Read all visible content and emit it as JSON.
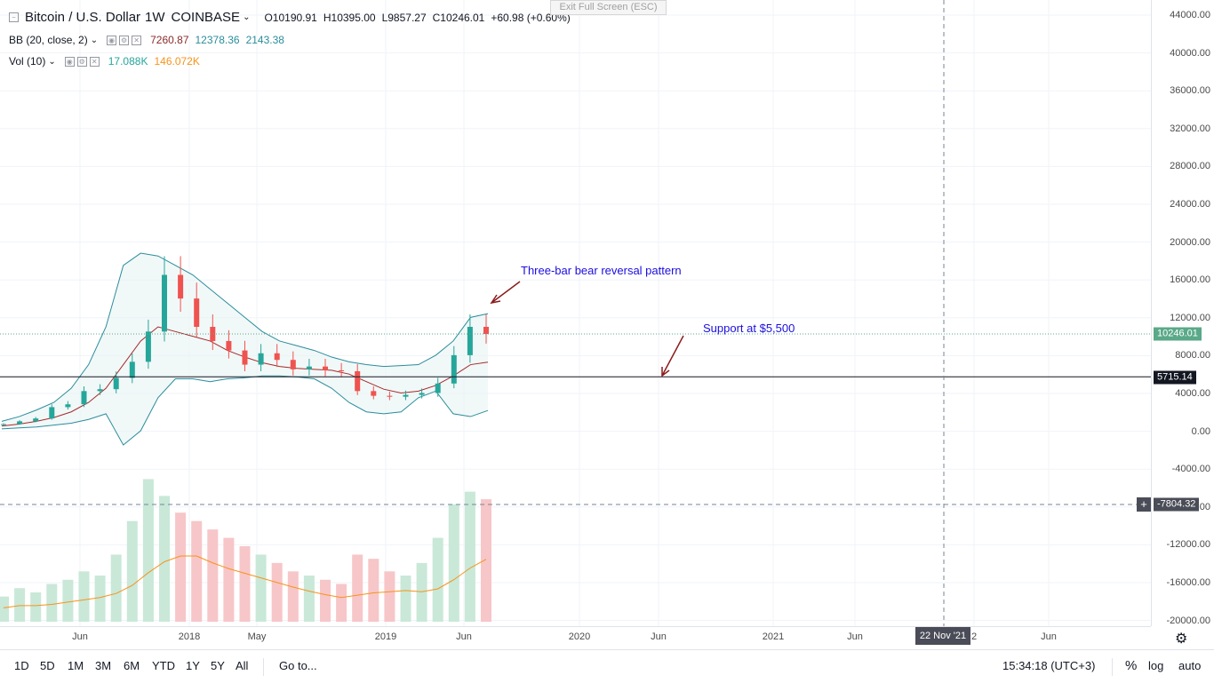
{
  "header": {
    "symbol": "Bitcoin / U.S. Dollar",
    "interval": "1W",
    "exchange": "COINBASE",
    "ohlc": {
      "o": "O10190.91",
      "h": "H10395.00",
      "l": "L9857.27",
      "c": "C10246.01",
      "change": "+60.98 (+0.60%)"
    },
    "fullscreen_hint": "Exit Full Screen (ESC)"
  },
  "indicators": {
    "bb": {
      "label": "BB (20, close, 2)",
      "basis": "7260.87",
      "upper": "12378.36",
      "lower": "2143.38"
    },
    "vol": {
      "label": "Vol (10)",
      "value": "17.088K",
      "ma": "146.072K"
    }
  },
  "price_axis": {
    "labels": [
      "44000.00",
      "40000.00",
      "36000.00",
      "32000.00",
      "28000.00",
      "24000.00",
      "20000.00",
      "16000.00",
      "12000.00",
      "8000.00",
      "4000.00",
      "0.00",
      "-4000.00",
      "-8000.00",
      "-12000.00",
      "-16000.00",
      "-20000.00"
    ],
    "last_price_tag": "10246.01",
    "support_tag": "5715.14",
    "crosshair_tag": "-7804.32"
  },
  "time_axis": {
    "labels": [
      "Jun",
      "2018",
      "May",
      "2019",
      "Jun",
      "2020",
      "Jun",
      "2021",
      "Jun",
      "2",
      "Jun"
    ],
    "crosshair_date": "22 Nov '21"
  },
  "annotations": {
    "reversal": "Three-bar bear reversal pattern",
    "support": "Support at $5,500"
  },
  "bottom_bar": {
    "ranges": [
      "1D",
      "5D",
      "1M",
      "3M",
      "6M",
      "YTD",
      "1Y",
      "5Y",
      "All"
    ],
    "goto": "Go to...",
    "clock": "15:34:18 (UTC+3)",
    "percent": "%",
    "log": "log",
    "auto": "auto"
  },
  "colors": {
    "up": "#26a69a",
    "down": "#ef5350",
    "bb_band": "#2a8d9c",
    "bb_basis": "#a52a2a",
    "vol_up": "#c9e8d8",
    "vol_down": "#f7c6c8",
    "vol_ma": "#f7931a",
    "annotation": "#1c0ee0",
    "last_tag": "#5aa989"
  },
  "chart_data": {
    "type": "candlestick",
    "series_anchor_dates": [
      "2017-06",
      "2018-01",
      "2018-05",
      "2019-01",
      "2019-06",
      "2020-01",
      "2020-06",
      "2021-01",
      "2021-06"
    ],
    "bb_upper": [
      1000,
      1500,
      2200,
      3000,
      4500,
      7000,
      11000,
      17500,
      18800,
      18500,
      17500,
      16500,
      15000,
      13500,
      12000,
      10500,
      9500,
      9000,
      8500,
      7800,
      7300,
      7000,
      6800,
      6900,
      7000,
      8000,
      9500,
      12000,
      12400
    ],
    "bb_basis": [
      500,
      700,
      1000,
      1400,
      2000,
      3000,
      4500,
      7000,
      9500,
      11000,
      10500,
      10000,
      9500,
      8500,
      7800,
      7200,
      6800,
      6600,
      6500,
      6400,
      6000,
      5200,
      4400,
      4000,
      4200,
      4800,
      5800,
      7000,
      7260
    ],
    "bb_lower": [
      200,
      300,
      400,
      600,
      800,
      1200,
      1800,
      -1500,
      0,
      3500,
      5500,
      5500,
      5200,
      5500,
      5600,
      5800,
      5800,
      5700,
      5500,
      4500,
      3000,
      2000,
      1800,
      2000,
      3500,
      4200,
      1800,
      1500,
      2143
    ],
    "closes": [
      700,
      1000,
      1300,
      2500,
      2800,
      4200,
      4400,
      5600,
      7300,
      10500,
      16500,
      14000,
      11000,
      9500,
      8500,
      7000,
      8200,
      7500,
      6500,
      6800,
      6400,
      6300,
      4200,
      3700,
      3600,
      3800,
      4000,
      5000,
      8000,
      11000,
      10246
    ],
    "volume": [
      30,
      40,
      35,
      45,
      50,
      60,
      55,
      80,
      120,
      170,
      150,
      130,
      120,
      110,
      100,
      90,
      80,
      70,
      60,
      55,
      50,
      45,
      80,
      75,
      60,
      55,
      70,
      100,
      140,
      155,
      146
    ],
    "last_price": 10246.01,
    "support_level": 5715.14,
    "ylim": [
      -20000,
      44000
    ]
  }
}
